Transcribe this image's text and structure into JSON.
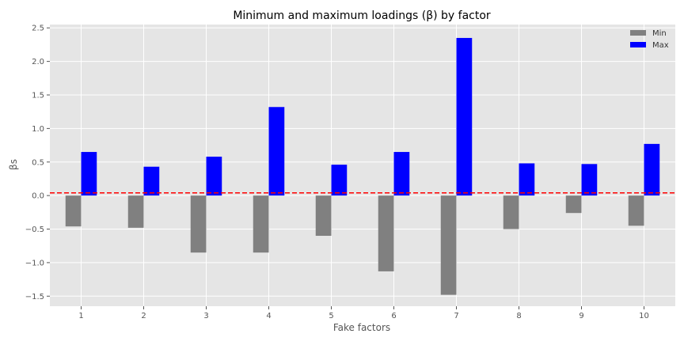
{
  "chart_data": {
    "type": "bar",
    "title": "Minimum and maximum loadings (β) by factor",
    "xlabel": "Fake factors",
    "ylabel": "βs",
    "categories": [
      "1",
      "2",
      "3",
      "4",
      "5",
      "6",
      "7",
      "8",
      "9",
      "10"
    ],
    "series": [
      {
        "name": "Min",
        "color": "#808080",
        "values": [
          -0.46,
          -0.48,
          -0.85,
          -0.85,
          -0.6,
          -1.13,
          -1.48,
          -0.5,
          -0.26,
          -0.45
        ]
      },
      {
        "name": "Max",
        "color": "#0000ff",
        "values": [
          0.65,
          0.43,
          0.58,
          1.32,
          0.46,
          0.65,
          2.35,
          0.48,
          0.47,
          0.77
        ]
      }
    ],
    "ylim": [
      -1.65,
      2.55
    ],
    "yticks": [
      -1.5,
      -1.0,
      -0.5,
      0.0,
      0.5,
      1.0,
      1.5,
      2.0,
      2.5
    ],
    "ytick_labels": [
      "−1.5",
      "−1.0",
      "−0.5",
      "0.0",
      "0.5",
      "1.0",
      "1.5",
      "2.0",
      "2.5"
    ],
    "reference_line": {
      "y": 0.04,
      "color": "#ff0000",
      "style": "dashed"
    },
    "grid": true,
    "legend_position": "top-right",
    "background_color": "#e5e5e5"
  }
}
